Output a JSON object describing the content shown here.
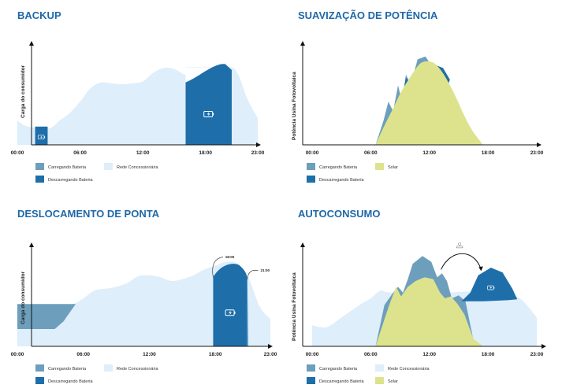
{
  "colors": {
    "grid_blue": "#deeefa",
    "charging": "#6d9fbd",
    "discharging": "#1e6ea9",
    "solar": "#dde38d",
    "title": "#1f68a8"
  },
  "icons": {
    "battery": "battery-icon",
    "sun": "sun-icon",
    "arrow": "curved-arrow-icon"
  },
  "chart_data": [
    {
      "type": "area",
      "title": "BACKUP",
      "ylabel": "Carga do consumidor",
      "xlabel": "",
      "x_ticks": [
        "00:00",
        "06:00",
        "12:00",
        "18:00",
        "23:00"
      ],
      "x_range": [
        0,
        23
      ],
      "legend_placement": "bottom-left",
      "series": [
        {
          "name": "Rede Concessionária",
          "points": [
            [
              0,
              0.25
            ],
            [
              1,
              0.19
            ],
            [
              3,
              0.17
            ],
            [
              4,
              0.25
            ],
            [
              5,
              0.33
            ],
            [
              6,
              0.45
            ],
            [
              7,
              0.59
            ],
            [
              8,
              0.65
            ],
            [
              9,
              0.64
            ],
            [
              10,
              0.63
            ],
            [
              11,
              0.64
            ],
            [
              12,
              0.66
            ],
            [
              13,
              0.75
            ],
            [
              14,
              0.8
            ],
            [
              15,
              0.79
            ],
            [
              16,
              0.73
            ],
            [
              17,
              0.7
            ],
            [
              18,
              0.76
            ],
            [
              19,
              0.8
            ],
            [
              20,
              0.82
            ],
            [
              21,
              0.76
            ],
            [
              22,
              0.48
            ],
            [
              23,
              0.28
            ]
          ]
        },
        {
          "name": "Descarregando Bateria",
          "blocks": [
            [
              1.7,
              2.9,
              0.19
            ],
            [
              16.1,
              20.5,
              0.81
            ]
          ]
        }
      ],
      "legend": [
        "Carregando Bateria",
        "Rede Concessionária",
        "Descarregando Bateria"
      ]
    },
    {
      "type": "area",
      "title": "SUAVIZAÇÃO DE POTÊNCIA",
      "ylabel": "Potência Usina Fotovoltaica",
      "xlabel": "",
      "x_ticks": [
        "00:00",
        "06:00",
        "12:00",
        "18:00",
        "23:00"
      ],
      "x_range": [
        0,
        23
      ],
      "legend_placement": "bottom-left",
      "series": [
        {
          "name": "Carregando Bateria",
          "points": [
            [
              6.5,
              0
            ],
            [
              7.3,
              0.25
            ],
            [
              7.8,
              0.45
            ],
            [
              8.3,
              0.35
            ],
            [
              8.8,
              0.62
            ],
            [
              9.2,
              0.45
            ],
            [
              9.6,
              0.73
            ],
            [
              10.1,
              0.63
            ],
            [
              10.8,
              0.89
            ],
            [
              11.6,
              0.92
            ],
            [
              12.2,
              0.83
            ],
            [
              12.7,
              0.78
            ],
            [
              13.3,
              0.72
            ],
            [
              13.9,
              0.56
            ],
            [
              14.6,
              0.45
            ],
            [
              15.5,
              0.25
            ],
            [
              16.5,
              0.08
            ],
            [
              17.5,
              0
            ]
          ]
        },
        {
          "name": "Solar",
          "points": [
            [
              6.5,
              0
            ],
            [
              7.3,
              0.18
            ],
            [
              8.3,
              0.38
            ],
            [
              9.1,
              0.55
            ],
            [
              10.2,
              0.73
            ],
            [
              11.0,
              0.84
            ],
            [
              11.7,
              0.87
            ],
            [
              12.5,
              0.85
            ],
            [
              13.3,
              0.76
            ],
            [
              14.0,
              0.64
            ],
            [
              14.8,
              0.48
            ],
            [
              15.6,
              0.3
            ],
            [
              16.4,
              0.15
            ],
            [
              17.5,
              0
            ]
          ]
        }
      ],
      "legend": [
        "Carregando Bateria",
        "Solar",
        "Descarregando Bateria"
      ]
    },
    {
      "type": "area",
      "title": "DESLOCAMENTO DE PONTA",
      "ylabel": "Carga do consumidor",
      "xlabel": "",
      "x_ticks": [
        "00:00",
        "06:00",
        "12:00",
        "18:00",
        "23:00"
      ],
      "x_range": [
        0,
        23
      ],
      "legend_placement": "bottom-left",
      "annotations": [
        "18:00",
        "21:00"
      ],
      "series": [
        {
          "name": "Rede Concessionária",
          "points": [
            [
              0,
              0.44
            ],
            [
              3,
              0.44
            ],
            [
              5,
              0.44
            ],
            [
              6,
              0.5
            ],
            [
              7,
              0.58
            ],
            [
              8,
              0.6
            ],
            [
              9,
              0.62
            ],
            [
              10,
              0.66
            ],
            [
              11,
              0.73
            ],
            [
              12,
              0.74
            ],
            [
              13,
              0.72
            ],
            [
              14,
              0.68
            ],
            [
              15,
              0.7
            ],
            [
              16,
              0.74
            ],
            [
              17,
              0.8
            ],
            [
              18,
              0.84
            ],
            [
              19,
              0.88
            ],
            [
              20,
              0.86
            ],
            [
              21,
              0.72
            ],
            [
              22,
              0.42
            ],
            [
              23,
              0.28
            ]
          ]
        },
        {
          "name": "Carregando Bateria",
          "points": [
            [
              0,
              0.44
            ],
            [
              5.3,
              0.44
            ],
            [
              4.2,
              0.26
            ],
            [
              3.4,
              0.18
            ],
            [
              0,
              0.18
            ]
          ]
        },
        {
          "name": "Descarregando Bateria",
          "blocks": [
            [
              17.8,
              20.9,
              0.85
            ]
          ]
        }
      ],
      "legend": [
        "Carregando Bateria",
        "Rede Concessionária",
        "Descarregando Bateria"
      ]
    },
    {
      "type": "area",
      "title": "AUTOCONSUMO",
      "ylabel": "Potência Usina Fotovoltaica",
      "xlabel": "",
      "x_ticks": [
        "00:00",
        "06:00",
        "12:00",
        "18:00",
        "23:00"
      ],
      "x_range": [
        0,
        23
      ],
      "legend_placement": "bottom-left",
      "series": [
        {
          "name": "Rede Concessionária",
          "points": [
            [
              0,
              0.22
            ],
            [
              1.5,
              0.2
            ],
            [
              3,
              0.3
            ],
            [
              5,
              0.44
            ],
            [
              6,
              0.5
            ],
            [
              7,
              0.58
            ],
            [
              8,
              0.56
            ],
            [
              12,
              0.54
            ],
            [
              14,
              0.56
            ],
            [
              16,
              0.57
            ],
            [
              18,
              0.58
            ],
            [
              20,
              0.56
            ],
            [
              21.5,
              0.48
            ],
            [
              23,
              0.3
            ]
          ]
        },
        {
          "name": "Carregando Bateria",
          "points": [
            [
              6.5,
              0
            ],
            [
              7.4,
              0.43
            ],
            [
              8.3,
              0.56
            ],
            [
              8.8,
              0.62
            ],
            [
              9.3,
              0.56
            ],
            [
              9.8,
              0.7
            ],
            [
              10.3,
              0.86
            ],
            [
              11.3,
              0.94
            ],
            [
              12.2,
              0.88
            ],
            [
              12.8,
              0.72
            ],
            [
              13.3,
              0.76
            ],
            [
              13.8,
              0.68
            ],
            [
              14.3,
              0.5
            ],
            [
              15.0,
              0.53
            ],
            [
              15.7,
              0.47
            ],
            [
              16.5,
              0.07
            ],
            [
              17.5,
              0
            ]
          ]
        },
        {
          "name": "Solar",
          "points": [
            [
              6.5,
              0
            ],
            [
              7.4,
              0.28
            ],
            [
              8.0,
              0.46
            ],
            [
              8.6,
              0.62
            ],
            [
              9.1,
              0.52
            ],
            [
              9.8,
              0.62
            ],
            [
              10.6,
              0.68
            ],
            [
              11.5,
              0.72
            ],
            [
              12.4,
              0.7
            ],
            [
              13.1,
              0.56
            ],
            [
              13.6,
              0.5
            ],
            [
              14.2,
              0.52
            ],
            [
              14.9,
              0.44
            ],
            [
              15.6,
              0.33
            ],
            [
              16.5,
              0.08
            ],
            [
              17.5,
              0
            ]
          ]
        },
        {
          "name": "Descarregando Bateria",
          "points": [
            [
              15.3,
              0.47
            ],
            [
              16.2,
              0.56
            ],
            [
              17.0,
              0.74
            ],
            [
              18.3,
              0.82
            ],
            [
              19.5,
              0.77
            ],
            [
              20.5,
              0.6
            ],
            [
              21.0,
              0.49
            ],
            [
              20.0,
              0.48
            ],
            [
              17.5,
              0.47
            ]
          ]
        }
      ],
      "legend": [
        "Carregando Bateria",
        "Rede Concessionária",
        "Descarregando Bateria",
        "Solar"
      ]
    }
  ]
}
